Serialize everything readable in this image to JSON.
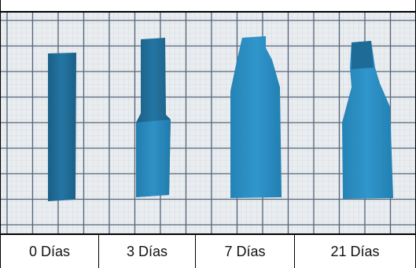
{
  "labels": [
    "0 Días",
    "3 Días",
    "7 Días",
    "21 Días"
  ],
  "colors": {
    "grid_background": "#e9edf0",
    "grid_line": "#4e5e6e",
    "sample_dark": "#1f6d98",
    "sample_light": "#2a8cc0"
  }
}
